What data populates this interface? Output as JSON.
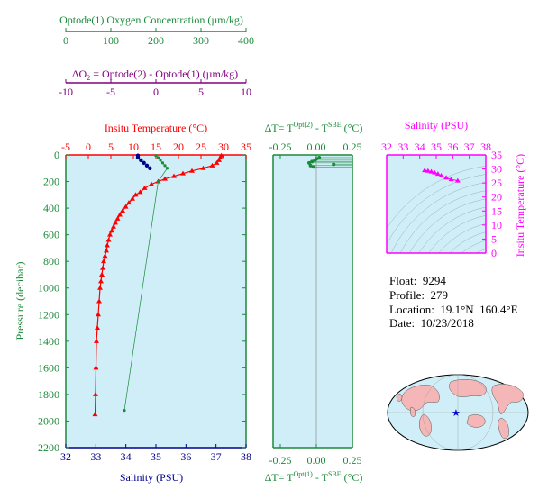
{
  "oxygen_axis": {
    "title": "Optode(1) Oxygen Concentration (µm/kg)",
    "ticks": [
      "0",
      "100",
      "200",
      "300",
      "400"
    ],
    "range": [
      0,
      400
    ],
    "color": "#1a8a3a"
  },
  "delta_o2_axis": {
    "title_delta": "ΔO",
    "title_sub": "2",
    "title_rest": " = Optode(2) - Optode(1)    (µm/kg)",
    "ticks": [
      "-10",
      "-5",
      "0",
      "5",
      "10"
    ],
    "range": [
      -10,
      10
    ],
    "color": "#800080"
  },
  "colors": {
    "temperature": "#ff0000",
    "salinity": "#00008b",
    "oxygen": "#1a8a3a",
    "delta_o2": "#800080",
    "sal_temp": "#ff00ff",
    "panel_bg": "#d0eef7",
    "land": "#f4b6b6"
  },
  "main_panel": {
    "temp_title": "Insitu Temperature (°C)",
    "temp_ticks": [
      "-5",
      "0",
      "5",
      "10",
      "15",
      "20",
      "25",
      "30",
      "35"
    ],
    "temp_range": [
      -5,
      35
    ],
    "sal_title": "Salinity (PSU)",
    "sal_ticks": [
      "32",
      "33",
      "34",
      "35",
      "36",
      "37",
      "38"
    ],
    "sal_range": [
      32,
      38
    ],
    "pressure_title": "Pressure (decibar)",
    "pressure_ticks": [
      "0",
      "200",
      "400",
      "600",
      "800",
      "1000",
      "1200",
      "1400",
      "1600",
      "1800",
      "2000",
      "2200"
    ],
    "pressure_range": [
      0,
      2200
    ]
  },
  "delta_panel": {
    "top_title": "ΔT= T",
    "top_sup": "Opt(2)",
    "top_mid": " - T",
    "top_sup2": "SBE",
    "top_unit": " (°C)",
    "bottom_title": "ΔT= T",
    "bottom_sup": "Opt(1)",
    "bottom_mid": " - T",
    "bottom_sup2": "SBE",
    "bottom_unit": " (°C)",
    "ticks": [
      "-0.25",
      "0.00",
      "0.25"
    ],
    "range": [
      -0.3,
      0.25
    ]
  },
  "ts_panel": {
    "sal_title": "Salinity (PSU)",
    "sal_ticks": [
      "32",
      "33",
      "34",
      "35",
      "36",
      "37",
      "38"
    ],
    "sal_range": [
      32,
      38
    ],
    "temp_title": "Insitu Temperature (°C)",
    "temp_ticks": [
      "0",
      "5",
      "10",
      "15",
      "20",
      "25",
      "30",
      "35"
    ],
    "temp_range": [
      0,
      35
    ]
  },
  "float_info": {
    "float_label": "Float:",
    "float_value": "9294",
    "profile_label": "Profile:",
    "profile_value": "279",
    "location_label": "Location:",
    "location_value": "19.1°N  160.4°E",
    "date_label": "Date:",
    "date_value": "10/23/2018"
  },
  "chart_data": {
    "type": "scatter",
    "temperature_profile": {
      "x_temperature_c": [
        29.5,
        29.3,
        29.0,
        28.5,
        27.5,
        25.5,
        23.0,
        21.0,
        19.0,
        17.0,
        15.5,
        14.0,
        12.5,
        11.5,
        10.5,
        9.8,
        9.0,
        8.3,
        7.6,
        7.0,
        6.5,
        6.0,
        5.6,
        5.2,
        4.8,
        4.5,
        4.2,
        4.0,
        3.7,
        3.4,
        3.2,
        3.0,
        2.8,
        2.6,
        2.4,
        2.2,
        2.0,
        1.8,
        1.7,
        1.6,
        1.5
      ],
      "y_pressure_dbar": [
        5,
        20,
        40,
        60,
        80,
        100,
        120,
        140,
        160,
        180,
        200,
        220,
        250,
        280,
        300,
        330,
        360,
        390,
        420,
        450,
        480,
        510,
        540,
        570,
        600,
        640,
        680,
        720,
        760,
        800,
        850,
        900,
        950,
        1000,
        1100,
        1200,
        1300,
        1400,
        1600,
        1800,
        1950
      ]
    },
    "salinity_profile": {
      "x_salinity_psu": [
        34.4,
        34.4,
        34.5,
        34.6,
        34.7,
        34.8
      ],
      "y_pressure_dbar": [
        5,
        20,
        40,
        60,
        80,
        100
      ]
    },
    "oxygen_profile": {
      "x_oxygen_umolkg": [
        200,
        205,
        210,
        215,
        220,
        225,
        205,
        130
      ],
      "y_pressure_dbar": [
        5,
        20,
        40,
        60,
        80,
        100,
        200,
        1920
      ]
    },
    "delta_t_opt2": {
      "x_delta_c": [
        -0.05,
        -0.03,
        -0.01,
        0.0,
        0.02,
        0.12,
        -0.04,
        -0.02
      ],
      "y_pressure_dbar": [
        60,
        50,
        40,
        30,
        20,
        70,
        80,
        90
      ]
    },
    "ts_points": {
      "x_salinity_psu": [
        34.3,
        34.5,
        34.7,
        34.9,
        35.1,
        35.3,
        35.6,
        35.9,
        36.3
      ],
      "y_temperature_c": [
        29.5,
        29.3,
        29.0,
        28.7,
        28.2,
        27.6,
        26.9,
        26.3,
        25.8
      ]
    }
  }
}
